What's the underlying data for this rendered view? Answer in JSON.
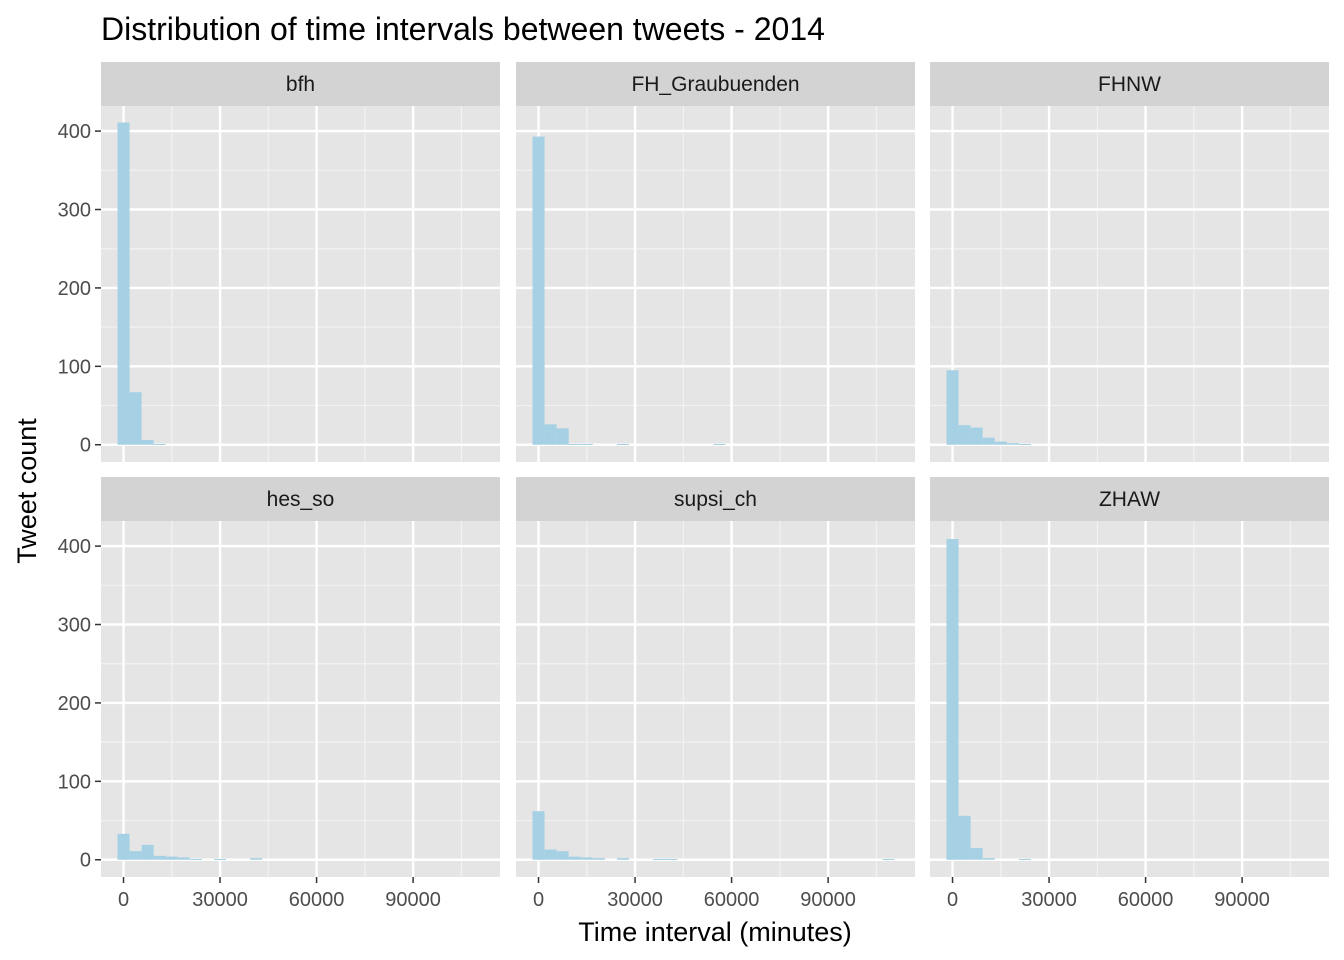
{
  "chart_data": {
    "type": "bar",
    "title": "Distribution of time intervals between tweets - 2014",
    "xlabel": "Time interval (minutes)",
    "ylabel": "Tweet count",
    "xlim": [
      -7000,
      117000
    ],
    "ylim": [
      -22,
      432
    ],
    "x_ticks": [
      0,
      30000,
      60000,
      90000
    ],
    "y_ticks": [
      0,
      100,
      200,
      300,
      400
    ],
    "bin_width": 3750,
    "bar_color": "#a6d1e4",
    "panel_background": "#e5e5e5",
    "strip_background": "#d3d3d3",
    "grid": true,
    "legend": "none",
    "layout": {
      "rows": 2,
      "cols": 3
    },
    "panels": [
      {
        "name": "bfh",
        "bin_starts": [
          0,
          3750,
          7500,
          11250
        ],
        "counts": [
          411,
          67,
          6,
          1
        ]
      },
      {
        "name": "FH_Graubuenden",
        "bin_starts": [
          0,
          3750,
          7500,
          11250,
          15000,
          26250,
          56250
        ],
        "counts": [
          393,
          26,
          21,
          1,
          1,
          1,
          1
        ]
      },
      {
        "name": "FHNW",
        "bin_starts": [
          0,
          3750,
          7500,
          11250,
          15000,
          18750,
          22500
        ],
        "counts": [
          95,
          25,
          22,
          9,
          4,
          2,
          1
        ]
      },
      {
        "name": "hes_so",
        "bin_starts": [
          0,
          3750,
          7500,
          11250,
          15000,
          18750,
          22500,
          30000,
          41250
        ],
        "counts": [
          33,
          11,
          19,
          5,
          4,
          3,
          1,
          1,
          2
        ]
      },
      {
        "name": "supsi_ch",
        "bin_starts": [
          0,
          3750,
          7500,
          11250,
          15000,
          18750,
          26250,
          37500,
          41250,
          108750
        ],
        "counts": [
          62,
          13,
          11,
          4,
          3,
          2,
          2,
          1,
          1,
          1
        ]
      },
      {
        "name": "ZHAW",
        "bin_starts": [
          0,
          3750,
          7500,
          11250,
          22500
        ],
        "counts": [
          409,
          56,
          15,
          2,
          1
        ]
      }
    ]
  }
}
